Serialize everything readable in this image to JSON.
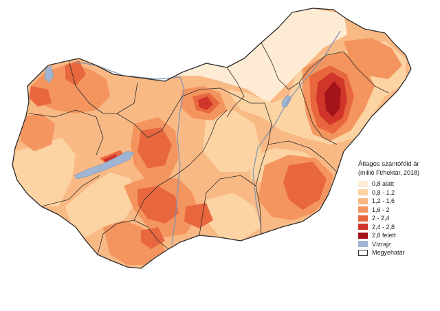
{
  "map": {
    "colors": {
      "c0": "#fdebd3",
      "c1": "#fcd3a2",
      "c2": "#f9b985",
      "c3": "#f4955f",
      "c4": "#e8673f",
      "c5": "#d1352a",
      "c6": "#a3141a",
      "water": "#9fb5d3",
      "border": "#2a2a2a",
      "river": "#7f93b0"
    }
  },
  "legend": {
    "title": "Átlagos szántóföld ár",
    "subtitle": "(millió Ft/hektár, 2018)",
    "items": [
      {
        "label": "0,8 alatt",
        "color": "#fdebd3"
      },
      {
        "label": "0,8 - 1,2",
        "color": "#fcd3a2"
      },
      {
        "label": "1,2 - 1,6",
        "color": "#f9b985"
      },
      {
        "label": "1,6 - 2",
        "color": "#f4955f"
      },
      {
        "label": "2 - 2,4",
        "color": "#e8673f"
      },
      {
        "label": "2,4 - 2,8",
        "color": "#d1352a"
      },
      {
        "label": "2,8 felett",
        "color": "#a3141a"
      },
      {
        "label": "Vízrajz",
        "color": "#9fb5d3"
      },
      {
        "label": "Megyehatár",
        "color": "#ffffff"
      }
    ]
  }
}
